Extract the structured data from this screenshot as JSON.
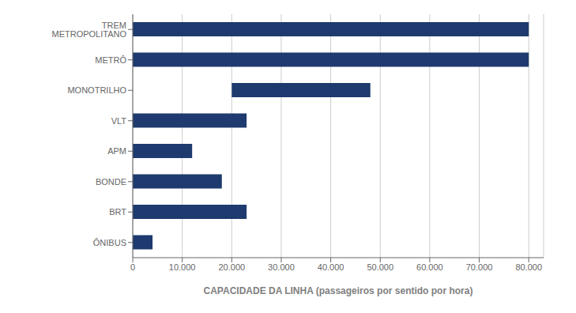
{
  "chart_data": {
    "type": "bar",
    "orientation": "horizontal",
    "categories": [
      "TREM METROPOLITANO",
      "METRÔ",
      "MONOTRILHO",
      "VLT",
      "APM",
      "BONDE",
      "BRT",
      "ÔNIBUS"
    ],
    "values": [
      80000,
      80000,
      48000,
      23000,
      12000,
      18000,
      23000,
      4000
    ],
    "starts": [
      0,
      0,
      20000,
      0,
      0,
      0,
      0,
      0
    ],
    "color": "#1e3a6e",
    "xlabel": "CAPACIDADE DA LINHA (passageiros por sentido por hora)",
    "xlim": [
      0,
      83000
    ],
    "xticks": [
      0,
      {
        "value": 10000,
        "label": "10.000"
      },
      {
        "value": 20000,
        "label": "20.000"
      },
      {
        "value": 30000,
        "label": "30.000"
      },
      {
        "value": 40000,
        "label": "40.000"
      },
      {
        "value": 50000,
        "label": "50.000"
      },
      {
        "value": 60000,
        "label": "60.000"
      },
      {
        "value": 70000,
        "label": "70.000"
      },
      {
        "value": 80000,
        "label": "80.000"
      }
    ],
    "grid": true
  }
}
